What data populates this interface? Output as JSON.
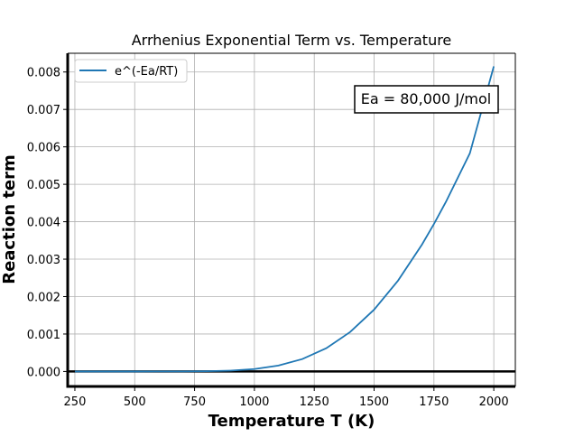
{
  "chart_data": {
    "type": "line",
    "title": "Arrhenius Exponential Term vs. Temperature",
    "xlabel": "Temperature T (K)",
    "ylabel": "Reaction term",
    "xlim": [
      220,
      2090
    ],
    "ylim": [
      -0.0004,
      0.0085
    ],
    "xticks": [
      250,
      500,
      750,
      1000,
      1250,
      1500,
      1750,
      2000
    ],
    "yticks": [
      0.0,
      0.001,
      0.002,
      0.003,
      0.004,
      0.005,
      0.006,
      0.007,
      0.008
    ],
    "ytick_labels": [
      "0.000",
      "0.001",
      "0.002",
      "0.003",
      "0.004",
      "0.005",
      "0.006",
      "0.007",
      "0.008"
    ],
    "xtick_labels": [
      "250",
      "500",
      "750",
      "1000",
      "1250",
      "1500",
      "1750",
      "2000"
    ],
    "grid": true,
    "legend_position": "top-left",
    "series": [
      {
        "name": "e^(-Ea/RT)",
        "color": "#1f77b4",
        "x": [
          250,
          300,
          400,
          500,
          600,
          700,
          800,
          900,
          1000,
          1100,
          1200,
          1300,
          1400,
          1500,
          1600,
          1700,
          1750,
          1800,
          1900,
          2000
        ],
        "y": [
          0.0,
          0.0,
          0.0,
          0.0,
          1e-07,
          1.1e-06,
          6.1e-06,
          2.26e-05,
          6.51e-05,
          0.000157,
          0.000331,
          0.000619,
          0.001054,
          0.001651,
          0.002427,
          0.00339,
          0.00394,
          0.00453,
          0.005827,
          0.00815
        ]
      }
    ],
    "annotation": "Ea = 80,000 J/mol",
    "annotation_position": "top-right",
    "hline_y": 0.0
  }
}
